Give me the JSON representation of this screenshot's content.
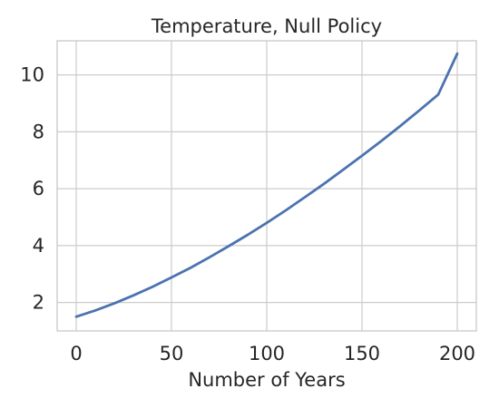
{
  "chart_data": {
    "type": "line",
    "title": "Temperature, Null Policy",
    "xlabel": "Number of Years",
    "ylabel": "",
    "xlim": [
      -10,
      210
    ],
    "ylim": [
      1.0,
      11.2
    ],
    "xticks": [
      0,
      50,
      100,
      150,
      200
    ],
    "yticks": [
      2,
      4,
      6,
      8,
      10
    ],
    "grid": true,
    "series": [
      {
        "color": "#4c72b0",
        "x": [
          0,
          10,
          20,
          30,
          40,
          50,
          60,
          70,
          80,
          90,
          100,
          110,
          120,
          130,
          140,
          150,
          160,
          170,
          180,
          190,
          200
        ],
        "y": [
          1.5,
          1.72,
          1.97,
          2.25,
          2.55,
          2.88,
          3.22,
          3.59,
          3.98,
          4.38,
          4.8,
          5.24,
          5.7,
          6.17,
          6.66,
          7.16,
          7.67,
          8.2,
          8.75,
          9.31,
          10.75
        ]
      }
    ]
  }
}
